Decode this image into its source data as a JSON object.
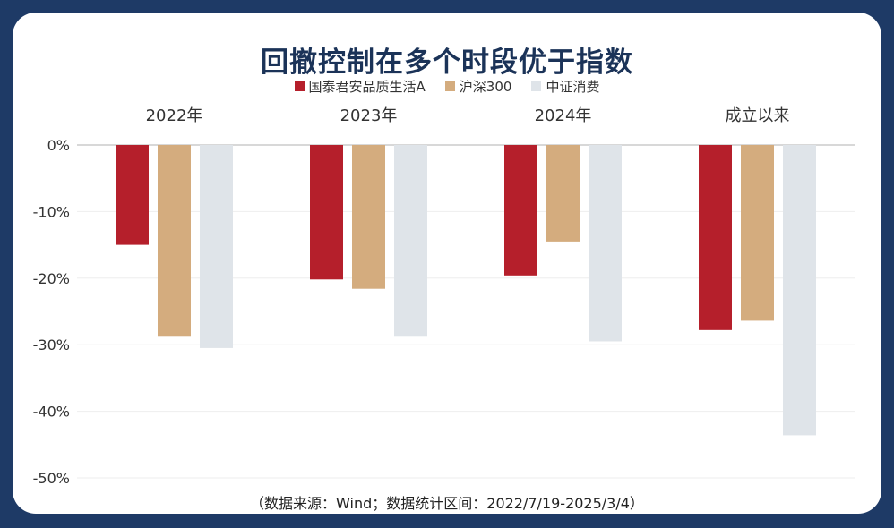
{
  "source_note": "（数据来源：Wind；数据统计区间：2022/7/19-2025/3/4）",
  "colors": {
    "frame": "#1e3a66",
    "title": "#1b3358",
    "series": [
      "#b51f2b",
      "#d4ac7e",
      "#dfe4e9"
    ],
    "grid": "#eeeeee",
    "axis": "#cccccc"
  },
  "chart_data": {
    "type": "bar",
    "title": "回撤控制在多个时段优于指数",
    "categories": [
      "2022年",
      "2023年",
      "2024年",
      "成立以来"
    ],
    "series": [
      {
        "name": "国泰君安品质生活A",
        "values": [
          -15.0,
          -20.2,
          -19.6,
          -27.8
        ]
      },
      {
        "name": "沪深300",
        "values": [
          -28.8,
          -21.6,
          -14.5,
          -26.4
        ]
      },
      {
        "name": "中证消费",
        "values": [
          -30.5,
          -28.8,
          -29.5,
          -43.6
        ]
      }
    ],
    "yticks": [
      "0%",
      "-10%",
      "-20%",
      "-30%",
      "-40%",
      "-50%"
    ],
    "ylim": [
      -50,
      0
    ],
    "xaxis_position": "top",
    "legend_position": "top-center",
    "grid": true
  }
}
